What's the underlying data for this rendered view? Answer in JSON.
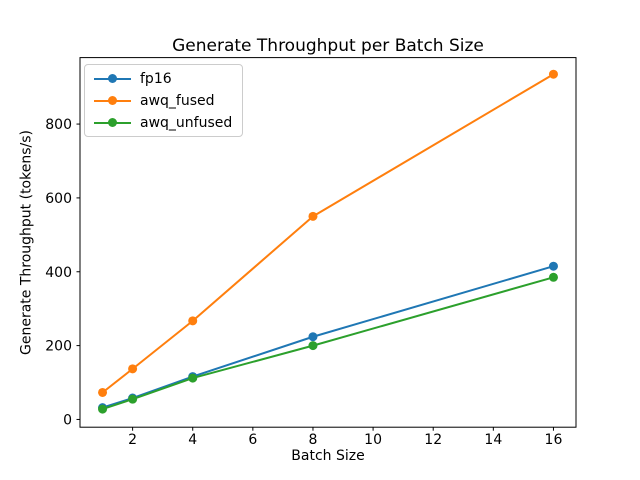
{
  "window": {
    "background": "#ffffff"
  },
  "chart_data": {
    "type": "line",
    "title": "Generate Throughput per Batch Size",
    "xlabel": "Batch Size",
    "ylabel": "Generate Throughput (tokens/s)",
    "x": [
      1,
      2,
      4,
      8,
      16
    ],
    "series": [
      {
        "name": "fp16",
        "color": "#1f77b4",
        "values": [
          32,
          58,
          116,
          224,
          415
        ]
      },
      {
        "name": "awq_fused",
        "color": "#ff7f0e",
        "values": [
          73,
          137,
          267,
          550,
          935
        ]
      },
      {
        "name": "awq_unfused",
        "color": "#2ca02c",
        "values": [
          28,
          55,
          112,
          200,
          385
        ]
      }
    ],
    "xticks": [
      2,
      4,
      6,
      8,
      10,
      12,
      14,
      16
    ],
    "yticks": [
      0,
      200,
      400,
      600,
      800
    ],
    "xlim": [
      0.25,
      16.75
    ],
    "ylim": [
      -21,
      980
    ],
    "grid": false,
    "legend_position": "upper-left",
    "marker": "circle",
    "axis_color": "#000000",
    "text_color": "#000000"
  }
}
